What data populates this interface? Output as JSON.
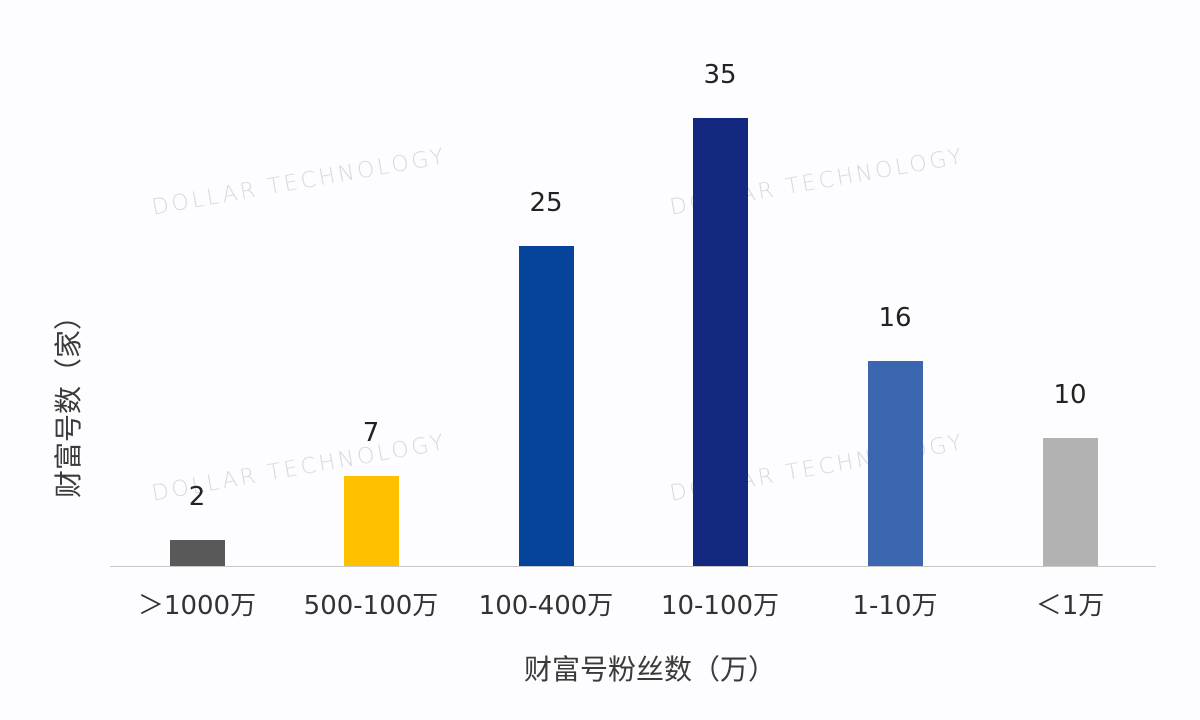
{
  "chart_data": {
    "type": "bar",
    "title": "",
    "xlabel": "财富号粉丝数（万）",
    "ylabel": "财富号数（家）",
    "categories": [
      "＞1000万",
      "500-100万",
      "100-400万",
      "10-100万",
      "1-10万",
      "＜1万"
    ],
    "values": [
      2,
      7,
      25,
      35,
      16,
      10
    ],
    "colors": [
      "#595959",
      "#ffc000",
      "#05449a",
      "#12297f",
      "#3a67b0",
      "#b3b2b3"
    ],
    "grid": false,
    "legend": null,
    "data_labels": true,
    "ylim": [
      0,
      35
    ]
  },
  "watermark": {
    "text": "DOLLAR TECHNOLOGY"
  }
}
